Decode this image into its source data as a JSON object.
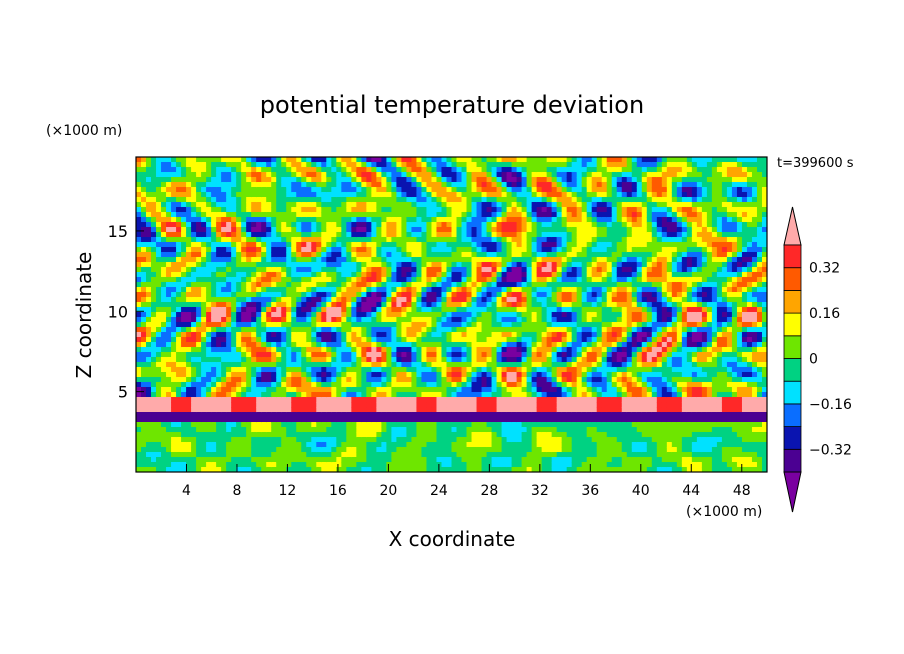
{
  "chart_data": {
    "type": "heatmap",
    "title": "potential temperature deviation",
    "xlabel": "X coordinate",
    "ylabel": "Z coordinate",
    "x_unit": "(×1000 m)",
    "y_unit": "(×1000 m)",
    "time_label": "t=399600 s",
    "xlim": [
      0,
      50
    ],
    "ylim": [
      0,
      19.6
    ],
    "x_ticks": [
      4,
      8,
      12,
      16,
      20,
      24,
      28,
      32,
      36,
      40,
      44,
      48
    ],
    "y_ticks": [
      5,
      10,
      15
    ],
    "colorbar": {
      "levels": [
        -0.4,
        -0.32,
        -0.24,
        -0.16,
        -0.08,
        0,
        0.08,
        0.16,
        0.24,
        0.32,
        0.4
      ],
      "tick_labels": [
        "0.32",
        "0.16",
        "0",
        "-0.16",
        "-0.32"
      ],
      "tick_values": [
        0.32,
        0.16,
        0,
        -0.16,
        -0.32
      ],
      "colors": [
        "#7a00a0",
        "#4b0092",
        "#0a14b0",
        "#0a6eff",
        "#00e1ff",
        "#00d282",
        "#6ee600",
        "#ffff00",
        "#ffa500",
        "#ff5a00",
        "#ff2828",
        "#ffaaaa"
      ],
      "extend": "both"
    },
    "field_description": "turbulent potential temperature deviation in x–z cross-section; strong positive band near z≈4, alternating layered structures aloft"
  }
}
